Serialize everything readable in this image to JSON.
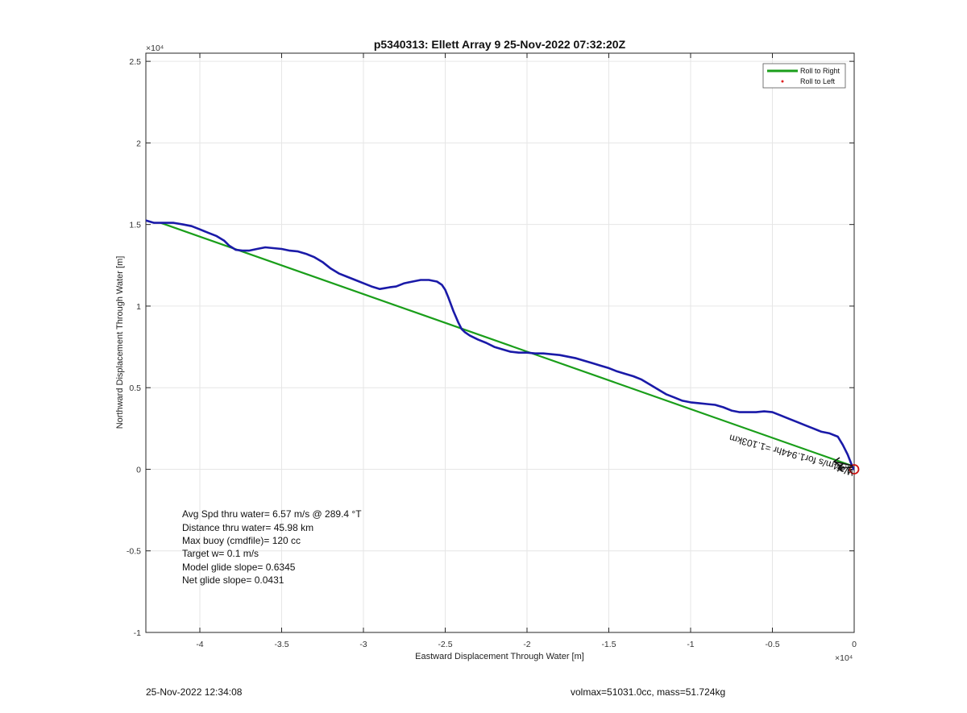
{
  "chart_data": {
    "type": "line",
    "title": "p5340313: Ellett Array 9 25-Nov-2022 07:32:20Z",
    "xlabel": "Eastward Displacement Through Water [m]",
    "ylabel": "Northward Displacement Through Water [m]",
    "x_exponent_label": "×10⁴",
    "y_exponent_label": "×10⁴",
    "xlim": [
      -43300,
      0
    ],
    "ylim": [
      -10000,
      25500
    ],
    "x_ticks": [
      -40000,
      -35000,
      -30000,
      -25000,
      -20000,
      -15000,
      -10000,
      -5000,
      0
    ],
    "x_tick_labels": [
      "-4",
      "-3.5",
      "-3",
      "-2.5",
      "-2",
      "-1.5",
      "-1",
      "-0.5",
      "0"
    ],
    "y_ticks": [
      -10000,
      -5000,
      0,
      5000,
      10000,
      15000,
      20000,
      25000
    ],
    "y_tick_labels": [
      "-1",
      "-0.5",
      "0",
      "0.5",
      "1",
      "1.5",
      "2",
      "2.5"
    ],
    "grid": true,
    "legend_placement": "top-right",
    "legend": [
      {
        "label": "Roll to Right",
        "color": "#1a9e1a",
        "style": "line"
      },
      {
        "label": "Roll to Left",
        "color": "#e02020",
        "style": "dot"
      }
    ],
    "series": [
      {
        "name": "Roll to Right",
        "color": "#1a9e1a",
        "x": [
          -42400,
          -100
        ],
        "y": [
          15100,
          200
        ]
      },
      {
        "color": "#1a1aa8",
        "x": [
          -43300,
          -42800,
          -42200,
          -41600,
          -41000,
          -40500,
          -40000,
          -39500,
          -39000,
          -38500,
          -38200,
          -37800,
          -37400,
          -37000,
          -36500,
          -36000,
          -35500,
          -35000,
          -34500,
          -34000,
          -33500,
          -33000,
          -32500,
          -32000,
          -31500,
          -31000,
          -30500,
          -30000,
          -29500,
          -29000,
          -28700,
          -28400,
          -28000,
          -27500,
          -27000,
          -26500,
          -26000,
          -25500,
          -25200,
          -25000,
          -24800,
          -24500,
          -24200,
          -24000,
          -23800,
          -23500,
          -23000,
          -22500,
          -22000,
          -21500,
          -21000,
          -20500,
          -20000,
          -19500,
          -19000,
          -18500,
          -18000,
          -17500,
          -17000,
          -16500,
          -16000,
          -15500,
          -15000,
          -14500,
          -14000,
          -13500,
          -13000,
          -12500,
          -12000,
          -11500,
          -11000,
          -10500,
          -10000,
          -9500,
          -9000,
          -8500,
          -8000,
          -7500,
          -7000,
          -6500,
          -6000,
          -5500,
          -5000,
          -4500,
          -4000,
          -3500,
          -3000,
          -2500,
          -2000,
          -1500,
          -1000,
          -700,
          -400,
          -200,
          -100,
          -30
        ],
        "y": [
          15250,
          15100,
          15100,
          15100,
          15000,
          14900,
          14700,
          14500,
          14300,
          14000,
          13700,
          13450,
          13400,
          13400,
          13500,
          13600,
          13550,
          13500,
          13400,
          13350,
          13200,
          13000,
          12700,
          12300,
          12000,
          11800,
          11600,
          11400,
          11200,
          11050,
          11100,
          11150,
          11200,
          11400,
          11500,
          11600,
          11600,
          11500,
          11300,
          11000,
          10500,
          9700,
          9000,
          8600,
          8400,
          8200,
          7950,
          7750,
          7500,
          7350,
          7200,
          7150,
          7150,
          7100,
          7100,
          7050,
          7000,
          6900,
          6800,
          6650,
          6500,
          6350,
          6200,
          6000,
          5850,
          5700,
          5500,
          5200,
          4900,
          4600,
          4400,
          4200,
          4100,
          4050,
          4000,
          3950,
          3800,
          3600,
          3500,
          3500,
          3500,
          3550,
          3500,
          3300,
          3100,
          2900,
          2700,
          2500,
          2300,
          2200,
          2000,
          1500,
          900,
          400,
          150,
          0
        ]
      }
    ],
    "marker": {
      "x": 0,
      "y": 0,
      "color": "#cc1111",
      "shape": "circle"
    },
    "annotation_rotated": "1.44m/s for1.944hr =1.103km",
    "annotation_rotated_2": "Wat",
    "annotation_lines": [
      "Avg Spd thru water=  6.57 m/s @ 289.4 °T",
      "Distance thru water= 45.98 km",
      "Max buoy (cmdfile)= 120 cc",
      "Target w= 0.1 m/s",
      "Model glide slope= 0.6345",
      "Net glide slope= 0.0431"
    ]
  },
  "footer": {
    "timestamp": "25-Nov-2022 12:34:08",
    "vehicle_params": "volmax=51031.0cc, mass=51.724kg"
  }
}
